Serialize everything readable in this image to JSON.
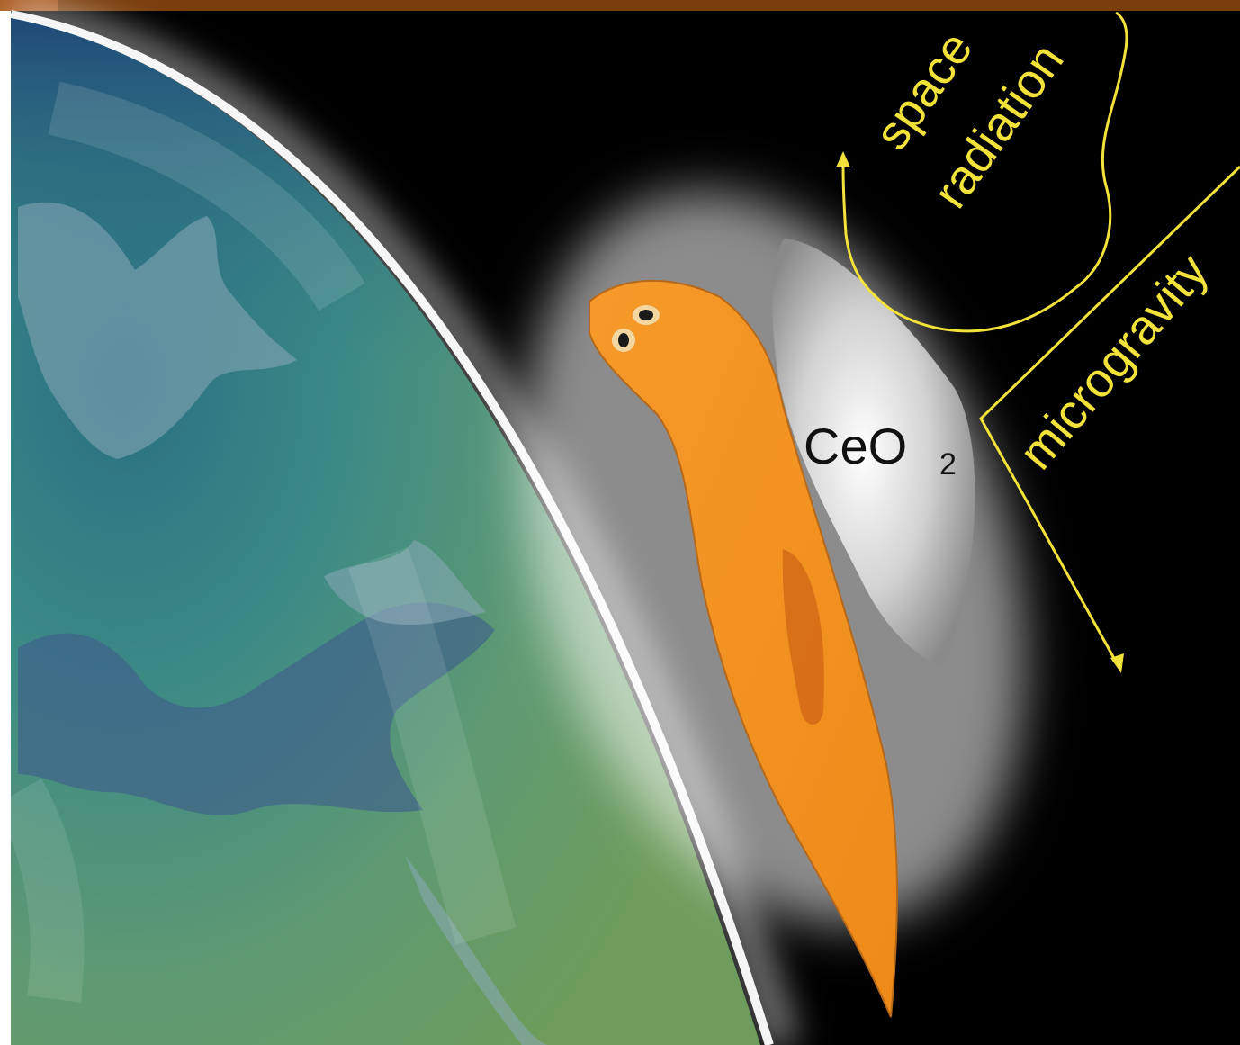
{
  "labels": {
    "space": "space",
    "radiation": "radiation",
    "microgravity": "microgravity",
    "compound_main": "CeO",
    "compound_sub": "2"
  },
  "colors": {
    "background": "#000000",
    "top_band": "#7a3e0c",
    "annotation": "#f2e23a",
    "planarian": "#f0901e",
    "particle": "#c8c8c8",
    "earth_ocean": "#2e7f88",
    "earth_land": "#6b9c62",
    "atmosphere_glow": "#ffffff"
  },
  "icons": [
    "earth-globe",
    "planarian-worm",
    "ceria-nanoparticle",
    "arrow-up-icon",
    "arrow-down-icon"
  ]
}
